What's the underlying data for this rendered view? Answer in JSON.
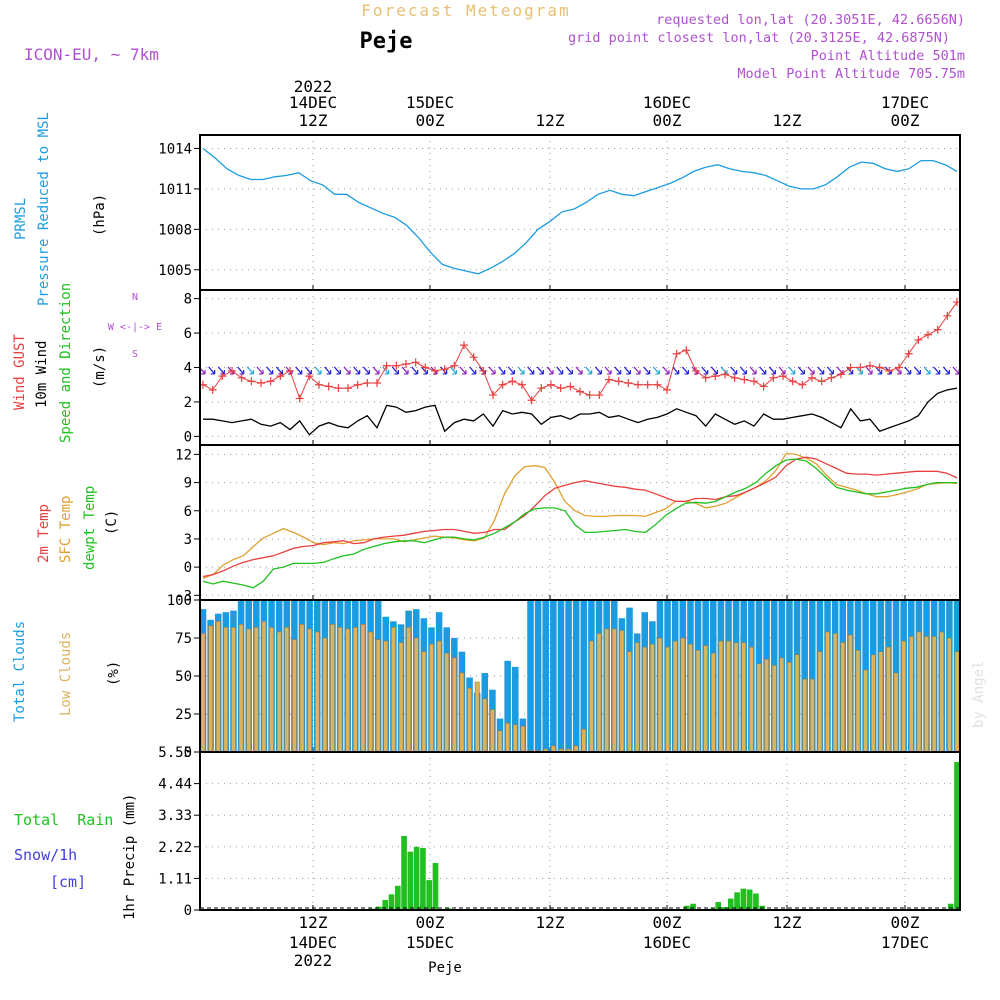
{
  "header": {
    "title": "Forecast Meteogram",
    "location": "Peje",
    "model": "ICON-EU, ~ 7km",
    "requested": "requested lon,lat (20.3051E, 42.6656N)",
    "grid_point": "grid point closest lon,lat (20.3125E, 42.6875N)",
    "point_alt": "Point Altitude 501m",
    "model_alt": "Model Point Altitude 705.75m",
    "footer_location": "Peje",
    "watermark": "by Angel"
  },
  "colors": {
    "pressure": "#1c9ce0",
    "gust": "#e84040",
    "wind": "#000000",
    "arrow_blue": "#2020e0",
    "arrow_purple": "#9020c0",
    "arrow_cyan": "#20a8d8",
    "temp2m": "#e84040",
    "sfc": "#e0a030",
    "dewpt": "#20c020",
    "total_clouds": "#1c9ce0",
    "low_clouds": "#d8b460",
    "rain": "#20c020",
    "snow": "#4040e0",
    "label_purple": "#b050d0"
  },
  "time_axis": {
    "top_year": "2022",
    "ticks": [
      {
        "date": "14DEC",
        "hour": "12Z"
      },
      {
        "date": "15DEC",
        "hour": "00Z"
      },
      {
        "date": "",
        "hour": "12Z"
      },
      {
        "date": "16DEC",
        "hour": "00Z"
      },
      {
        "date": "",
        "hour": "12Z"
      },
      {
        "date": "17DEC",
        "hour": "00Z"
      }
    ],
    "bottom_year": "2022"
  },
  "panels": {
    "pressure": {
      "l1": "PRMSL",
      "l2": "Pressure Reduced to MSL",
      "unit": "(hPa)"
    },
    "wind": {
      "l1": "Wind GUST",
      "l2": "10m Wind",
      "l3": "Speed and Direction",
      "unit": "(m/s)",
      "compass_n": "N",
      "compass_we": "W <-|-> E",
      "compass_s": "S"
    },
    "temp": {
      "l1": "2m Temp",
      "l2": "SFC Temp",
      "l3": "dewpt Temp",
      "unit": "(C)"
    },
    "clouds": {
      "l1": "Total Clouds",
      "l2": "Low Clouds",
      "unit": "(%)"
    },
    "precip": {
      "l1": "Total  Rain",
      "l2": "Snow/1h",
      "l3": "[cm]",
      "unit": "1hr Precip (mm)"
    }
  },
  "chart_data": [
    {
      "type": "line",
      "name": "pressure",
      "x": [
        0,
        1,
        2,
        3,
        4,
        5,
        6,
        7,
        8,
        9,
        10,
        11,
        12,
        13,
        14,
        15,
        16,
        17,
        18,
        19,
        20,
        21,
        22,
        23,
        24,
        25,
        26,
        27,
        28,
        29,
        30,
        31,
        32,
        33,
        34,
        35,
        36,
        37,
        38,
        39,
        40,
        41,
        42,
        43,
        44,
        45,
        46,
        47,
        48,
        49,
        50,
        51,
        52,
        53,
        54,
        55,
        56,
        57,
        58,
        59,
        60,
        61,
        62,
        63
      ],
      "values": [
        1014.0,
        1013.3,
        1012.5,
        1012.0,
        1011.7,
        1011.7,
        1011.9,
        1012.0,
        1012.2,
        1011.6,
        1011.3,
        1010.6,
        1010.6,
        1010.0,
        1009.6,
        1009.2,
        1008.9,
        1008.3,
        1007.4,
        1006.3,
        1005.4,
        1005.1,
        1004.9,
        1004.7,
        1005.1,
        1005.6,
        1006.2,
        1007.0,
        1008.0,
        1008.6,
        1009.3,
        1009.5,
        1010.0,
        1010.6,
        1010.9,
        1010.6,
        1010.5,
        1010.8,
        1011.1,
        1011.4,
        1011.8,
        1012.3,
        1012.6,
        1012.8,
        1012.5,
        1012.3,
        1012.2,
        1012.0,
        1011.6,
        1011.2,
        1011.0,
        1011.0,
        1011.3,
        1011.9,
        1012.6,
        1013.0,
        1012.9,
        1012.5,
        1012.3,
        1012.5,
        1013.1,
        1013.1,
        1012.8,
        1012.3
      ],
      "ylim": [
        1003.5,
        1015.0
      ],
      "yticks": [
        1005,
        1008,
        1011,
        1014
      ]
    },
    {
      "type": "line",
      "name": "wind",
      "series": [
        {
          "name": "Wind GUST",
          "values": [
            3.0,
            2.7,
            3.5,
            3.8,
            3.4,
            3.2,
            3.1,
            3.2,
            3.5,
            3.8,
            2.2,
            3.5,
            3.0,
            2.9,
            2.8,
            2.8,
            3.0,
            3.1,
            3.1,
            4.1,
            4.1,
            4.2,
            4.3,
            4.0,
            3.8,
            3.9,
            4.1,
            5.3,
            4.6,
            3.8,
            2.4,
            3.0,
            3.2,
            3.0,
            2.1,
            2.8,
            3.0,
            2.8,
            2.9,
            2.6,
            2.4,
            2.4,
            3.3,
            3.2,
            3.1,
            3.0,
            3.0,
            3.0,
            2.7,
            4.8,
            5.0,
            3.8,
            3.4,
            3.5,
            3.6,
            3.4,
            3.3,
            3.2,
            2.9,
            3.4,
            3.5,
            3.2,
            3.0,
            3.4,
            3.2,
            3.4,
            3.6,
            4.0,
            4.0,
            4.1,
            4.0,
            3.8,
            4.0,
            4.8,
            5.6,
            5.9,
            6.2,
            7.0,
            7.8
          ]
        },
        {
          "name": "10m Wind",
          "values": [
            1.0,
            1.0,
            0.9,
            0.8,
            0.9,
            1.0,
            0.7,
            0.6,
            0.8,
            0.4,
            0.9,
            0.1,
            0.6,
            0.8,
            0.6,
            0.5,
            0.9,
            1.2,
            0.5,
            1.8,
            1.7,
            1.4,
            1.5,
            1.7,
            1.8,
            0.3,
            0.8,
            1.0,
            0.9,
            1.3,
            0.6,
            1.5,
            1.3,
            1.4,
            1.3,
            0.7,
            1.1,
            1.2,
            1.0,
            1.3,
            1.3,
            1.4,
            1.1,
            1.2,
            1.0,
            0.8,
            1.0,
            1.1,
            1.3,
            1.6,
            1.4,
            1.2,
            0.6,
            1.3,
            1.0,
            0.7,
            0.9,
            0.6,
            1.3,
            1.0,
            1.0,
            1.1,
            1.2,
            1.3,
            1.1,
            0.8,
            0.5,
            1.6,
            0.9,
            1.0,
            0.3,
            0.5,
            0.7,
            0.9,
            1.2,
            2.0,
            2.5,
            2.7,
            2.8
          ]
        }
      ],
      "ylim": [
        -0.5,
        8.5
      ],
      "yticks": [
        0,
        2,
        4,
        6,
        8
      ]
    },
    {
      "type": "line",
      "name": "temperature",
      "series": [
        {
          "name": "2m Temp",
          "values": [
            -1.0,
            -0.8,
            -0.4,
            0.1,
            0.5,
            0.8,
            1.0,
            1.2,
            1.6,
            2.0,
            2.2,
            2.3,
            2.6,
            2.7,
            2.8,
            2.5,
            2.6,
            3.0,
            3.2,
            3.3,
            3.4,
            3.6,
            3.8,
            3.9,
            4.0,
            4.0,
            3.8,
            3.6,
            3.7,
            4.0,
            4.0,
            4.8,
            5.5,
            6.5,
            7.6,
            8.4,
            8.7,
            9.0,
            9.2,
            9.0,
            8.8,
            8.6,
            8.5,
            8.3,
            8.2,
            7.8,
            7.4,
            7.0,
            7.0,
            7.3,
            7.3,
            7.2,
            7.5,
            7.6,
            8.0,
            8.5,
            9.0,
            9.6,
            10.8,
            11.5,
            11.7,
            11.5,
            11.0,
            10.5,
            10.0,
            9.9,
            9.9,
            9.8,
            9.9,
            10.0,
            10.1,
            10.2,
            10.2,
            10.2,
            10.0,
            9.5
          ]
        },
        {
          "name": "SFC Temp",
          "values": [
            -1.2,
            -0.8,
            0.2,
            0.8,
            1.2,
            2.2,
            3.1,
            3.6,
            4.1,
            3.7,
            3.2,
            2.6,
            2.4,
            2.6,
            2.5,
            2.8,
            2.9,
            3.0,
            3.0,
            3.0,
            2.7,
            2.9,
            3.1,
            3.3,
            3.2,
            3.1,
            2.9,
            2.8,
            3.1,
            5.0,
            7.8,
            9.7,
            10.7,
            10.8,
            10.6,
            9.0,
            7.0,
            6.0,
            5.5,
            5.4,
            5.4,
            5.5,
            5.5,
            5.5,
            5.4,
            5.8,
            6.2,
            7.0,
            7.0,
            6.8,
            6.3,
            6.5,
            6.8,
            7.4,
            8.0,
            8.5,
            9.2,
            10.3,
            12.1,
            12.0,
            11.6,
            11.0,
            9.8,
            8.8,
            8.5,
            8.2,
            7.8,
            7.5,
            7.5,
            7.7,
            8.0,
            8.3,
            8.8,
            8.9,
            9.0,
            8.9
          ]
        },
        {
          "name": "dewpt Temp",
          "values": [
            -1.5,
            -1.8,
            -1.5,
            -1.7,
            -1.9,
            -2.2,
            -1.5,
            -0.2,
            0.0,
            0.4,
            0.4,
            0.4,
            0.5,
            0.9,
            1.2,
            1.4,
            1.9,
            2.2,
            2.5,
            2.7,
            2.8,
            2.8,
            2.6,
            2.9,
            3.2,
            3.2,
            3.0,
            2.9,
            3.2,
            3.6,
            4.2,
            4.8,
            5.7,
            6.2,
            6.3,
            6.3,
            6.0,
            4.5,
            3.7,
            3.7,
            3.8,
            3.9,
            4.0,
            3.8,
            3.7,
            4.5,
            5.5,
            6.2,
            6.8,
            6.9,
            6.8,
            7.0,
            7.5,
            8.0,
            8.4,
            9.0,
            10.0,
            10.8,
            11.4,
            11.5,
            11.3,
            10.5,
            9.5,
            8.5,
            8.2,
            8.0,
            7.8,
            7.8,
            8.0,
            8.2,
            8.4,
            8.5,
            8.8,
            9.0,
            9.0,
            9.0
          ]
        }
      ],
      "ylim": [
        -3.5,
        13.0
      ],
      "yticks": [
        -3,
        0,
        3,
        6,
        9,
        12
      ]
    },
    {
      "type": "bar",
      "name": "clouds",
      "series": [
        {
          "name": "Total Clouds",
          "values": [
            94,
            87,
            91,
            92,
            93,
            100,
            100,
            100,
            100,
            100,
            100,
            100,
            100,
            100,
            100,
            100,
            100,
            100,
            100,
            100,
            100,
            100,
            100,
            100,
            89,
            86,
            84,
            93,
            94,
            88,
            82,
            92,
            82,
            75,
            66,
            49,
            39,
            52,
            41,
            22,
            60,
            56,
            22,
            100,
            100,
            100,
            100,
            100,
            100,
            100,
            100,
            100,
            100,
            100,
            100,
            88,
            95,
            78,
            92,
            86,
            100,
            100,
            100,
            100,
            100,
            100,
            100,
            100,
            100,
            100,
            100,
            100,
            100,
            100,
            100,
            100,
            100,
            100,
            100,
            100,
            100,
            100,
            100,
            100,
            100,
            100,
            100,
            100,
            100,
            100,
            100,
            100,
            100,
            100,
            100,
            100,
            100,
            100,
            100,
            100
          ]
        },
        {
          "name": "Low Clouds",
          "values": [
            78,
            83,
            86,
            82,
            82,
            84,
            81,
            82,
            86,
            82,
            79,
            82,
            74,
            84,
            81,
            79,
            75,
            84,
            82,
            81,
            82,
            84,
            79,
            74,
            73,
            82,
            72,
            82,
            75,
            66,
            71,
            73,
            65,
            62,
            52,
            42,
            46,
            35,
            28,
            14,
            19,
            18,
            17,
            1,
            1,
            2,
            4,
            2,
            2,
            4,
            15,
            73,
            78,
            81,
            81,
            80,
            66,
            72,
            69,
            71,
            75,
            69,
            73,
            75,
            71,
            67,
            70,
            65,
            73,
            73,
            72,
            72,
            69,
            58,
            61,
            57,
            62,
            59,
            64,
            48,
            48,
            66,
            79,
            78,
            72,
            77,
            67,
            54,
            64,
            66,
            69,
            52,
            73,
            76,
            79,
            76,
            76,
            79,
            75,
            66
          ]
        }
      ],
      "ylim": [
        0,
        100
      ],
      "yticks": [
        0,
        25,
        50,
        75,
        100
      ]
    },
    {
      "type": "bar",
      "name": "precip",
      "series": [
        {
          "name": "Total Rain",
          "values": [
            0,
            0,
            0,
            0,
            0,
            0,
            0,
            0,
            0,
            0,
            0,
            0,
            0,
            0,
            0,
            0,
            0,
            0,
            0,
            0,
            0,
            0,
            0,
            0,
            0,
            0,
            0,
            0.05,
            0.12,
            0.35,
            0.55,
            0.85,
            2.6,
            2.05,
            2.22,
            2.18,
            1.05,
            1.65,
            0,
            0.06,
            0,
            0,
            0,
            0,
            0,
            0,
            0,
            0,
            0,
            0,
            0,
            0,
            0,
            0,
            0,
            0,
            0,
            0,
            0,
            0,
            0,
            0,
            0,
            0,
            0,
            0,
            0,
            0,
            0,
            0,
            0,
            0,
            0,
            0,
            0,
            0,
            0,
            0.15,
            0.22,
            0,
            0,
            0.05,
            0.28,
            0.1,
            0.4,
            0.62,
            0.75,
            0.72,
            0.58,
            0.15,
            0,
            0,
            0,
            0,
            0,
            0,
            0,
            0,
            0,
            0,
            0,
            0,
            0,
            0,
            0,
            0,
            0,
            0,
            0,
            0,
            0,
            0,
            0,
            0,
            0,
            0,
            0,
            0,
            0,
            0.22,
            5.2
          ]
        }
      ],
      "ylim": [
        0,
        5.55
      ],
      "yticks": [
        0,
        1.11,
        2.22,
        3.33,
        4.44,
        5.55
      ]
    }
  ]
}
